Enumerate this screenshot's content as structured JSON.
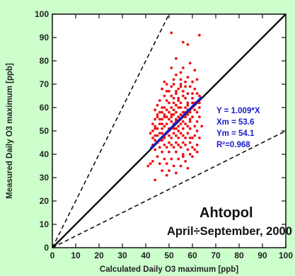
{
  "colors": {
    "page_background": "#ccffcc",
    "plot_background": "#ffffff",
    "points": "#ee1111",
    "fit_line": "#1a1acc",
    "fit_text": "#1a1acc",
    "axes": "#111111"
  },
  "chart_data": {
    "type": "scatter",
    "title": "Ahtopol",
    "subtitle": "April÷September, 2000",
    "xlabel": "Calculated Daily O3 maximum [ppb]",
    "ylabel": "Measured Daily O3 maximum [ppb]",
    "xlim": [
      0,
      100
    ],
    "ylim": [
      0,
      100
    ],
    "xticks": [
      0,
      10,
      20,
      30,
      40,
      50,
      60,
      70,
      80,
      90,
      100
    ],
    "yticks": [
      0,
      10,
      20,
      30,
      40,
      50,
      60,
      70,
      80,
      90,
      100
    ],
    "grid": false,
    "reference_lines": [
      {
        "style": "solid",
        "slope": 1.0
      },
      {
        "style": "dashed",
        "slope": 2.0
      },
      {
        "style": "dashed",
        "slope": 0.5
      }
    ],
    "fit_line": {
      "slope": 1.009,
      "x": [
        42,
        64
      ]
    },
    "fit_stats": [
      "Y = 1.009*X",
      "Xm = 53.6",
      "Ym = 54.1",
      "R²=0.968"
    ],
    "points": [
      [
        51,
        92
      ],
      [
        63,
        91
      ],
      [
        56,
        88
      ],
      [
        58,
        87
      ],
      [
        53,
        81
      ],
      [
        59,
        79
      ],
      [
        51,
        77
      ],
      [
        56,
        77
      ],
      [
        61,
        76
      ],
      [
        53,
        74
      ],
      [
        58,
        73
      ],
      [
        55,
        72
      ],
      [
        57,
        71
      ],
      [
        60,
        71
      ],
      [
        62,
        72
      ],
      [
        49,
        70
      ],
      [
        52,
        70
      ],
      [
        55,
        69
      ],
      [
        59,
        69
      ],
      [
        61,
        68
      ],
      [
        47,
        68
      ],
      [
        50,
        67
      ],
      [
        53,
        67
      ],
      [
        56,
        67
      ],
      [
        58,
        66
      ],
      [
        62,
        66
      ],
      [
        48,
        65
      ],
      [
        51,
        65
      ],
      [
        54,
        64
      ],
      [
        57,
        64
      ],
      [
        60,
        64
      ],
      [
        63,
        65
      ],
      [
        46,
        63
      ],
      [
        49,
        63
      ],
      [
        52,
        62
      ],
      [
        55,
        62
      ],
      [
        58,
        62
      ],
      [
        61,
        62
      ],
      [
        45,
        61
      ],
      [
        48,
        60
      ],
      [
        51,
        60
      ],
      [
        54,
        60
      ],
      [
        57,
        60
      ],
      [
        60,
        60
      ],
      [
        63,
        60
      ],
      [
        44,
        59
      ],
      [
        47,
        58
      ],
      [
        50,
        58
      ],
      [
        53,
        58
      ],
      [
        56,
        58
      ],
      [
        59,
        58
      ],
      [
        62,
        58
      ],
      [
        45,
        57
      ],
      [
        48,
        56
      ],
      [
        51,
        56
      ],
      [
        54,
        56
      ],
      [
        57,
        56
      ],
      [
        60,
        56
      ],
      [
        63,
        56
      ],
      [
        44,
        55
      ],
      [
        47,
        55
      ],
      [
        50,
        55
      ],
      [
        53,
        55
      ],
      [
        56,
        54
      ],
      [
        59,
        54
      ],
      [
        62,
        54
      ],
      [
        43,
        53
      ],
      [
        46,
        53
      ],
      [
        49,
        53
      ],
      [
        52,
        53
      ],
      [
        55,
        53
      ],
      [
        58,
        52
      ],
      [
        61,
        52
      ],
      [
        64,
        52
      ],
      [
        44,
        51
      ],
      [
        47,
        51
      ],
      [
        50,
        51
      ],
      [
        53,
        51
      ],
      [
        56,
        51
      ],
      [
        59,
        51
      ],
      [
        62,
        50
      ],
      [
        43,
        50
      ],
      [
        46,
        49
      ],
      [
        49,
        49
      ],
      [
        52,
        49
      ],
      [
        55,
        49
      ],
      [
        58,
        49
      ],
      [
        61,
        48
      ],
      [
        45,
        48
      ],
      [
        48,
        47
      ],
      [
        51,
        47
      ],
      [
        54,
        47
      ],
      [
        57,
        47
      ],
      [
        60,
        47
      ],
      [
        63,
        47
      ],
      [
        44,
        46
      ],
      [
        47,
        46
      ],
      [
        50,
        45
      ],
      [
        53,
        45
      ],
      [
        56,
        45
      ],
      [
        59,
        45
      ],
      [
        62,
        44
      ],
      [
        43,
        44
      ],
      [
        46,
        43
      ],
      [
        49,
        43
      ],
      [
        52,
        43
      ],
      [
        55,
        43
      ],
      [
        58,
        42
      ],
      [
        61,
        42
      ],
      [
        44,
        42
      ],
      [
        47,
        41
      ],
      [
        50,
        41
      ],
      [
        53,
        41
      ],
      [
        56,
        40
      ],
      [
        59,
        40
      ],
      [
        45,
        39
      ],
      [
        48,
        38
      ],
      [
        51,
        38
      ],
      [
        54,
        38
      ],
      [
        57,
        37
      ],
      [
        46,
        36
      ],
      [
        49,
        36
      ],
      [
        52,
        35
      ],
      [
        55,
        35
      ],
      [
        58,
        34
      ],
      [
        47,
        33
      ],
      [
        50,
        33
      ],
      [
        53,
        32
      ],
      [
        43,
        37
      ],
      [
        42,
        36
      ],
      [
        41,
        35
      ],
      [
        49,
        31
      ],
      [
        44,
        29
      ],
      [
        56,
        39
      ],
      [
        60,
        39
      ],
      [
        62,
        41
      ],
      [
        54,
        52
      ],
      [
        51,
        54
      ],
      [
        57,
        53
      ],
      [
        55,
        57
      ],
      [
        52,
        59
      ],
      [
        58,
        61
      ],
      [
        54,
        63
      ],
      [
        50,
        62
      ],
      [
        56,
        65
      ],
      [
        53,
        66
      ],
      [
        49,
        67
      ],
      [
        55,
        70
      ],
      [
        52,
        72
      ],
      [
        48,
        57
      ],
      [
        46,
        55
      ],
      [
        44,
        52
      ],
      [
        47,
        49
      ],
      [
        45,
        45
      ],
      [
        48,
        44
      ],
      [
        51,
        44
      ],
      [
        54,
        44
      ],
      [
        57,
        44
      ],
      [
        60,
        43
      ],
      [
        53,
        48
      ],
      [
        56,
        48
      ],
      [
        59,
        47
      ],
      [
        50,
        50
      ],
      [
        47,
        53
      ],
      [
        45,
        56
      ],
      [
        49,
        59
      ],
      [
        52,
        57
      ],
      [
        58,
        57
      ],
      [
        61,
        59
      ],
      [
        63,
        62
      ],
      [
        60,
        66
      ],
      [
        57,
        69
      ],
      [
        54,
        68
      ],
      [
        51,
        69
      ],
      [
        48,
        71
      ],
      [
        55,
        75
      ],
      [
        52,
        64
      ],
      [
        55,
        60
      ],
      [
        57,
        58
      ],
      [
        59,
        55
      ],
      [
        52,
        51
      ],
      [
        50,
        48
      ],
      [
        48,
        48
      ],
      [
        46,
        46
      ],
      [
        54,
        50
      ],
      [
        56,
        56
      ],
      [
        53,
        54
      ],
      [
        55,
        55
      ],
      [
        58,
        59
      ],
      [
        60,
        62
      ],
      [
        49,
        56
      ],
      [
        47,
        60
      ],
      [
        46,
        58
      ],
      [
        44,
        48
      ],
      [
        45,
        51
      ],
      [
        43,
        47
      ],
      [
        42,
        49
      ],
      [
        48,
        52
      ],
      [
        51,
        57
      ],
      [
        53,
        61
      ]
    ]
  }
}
